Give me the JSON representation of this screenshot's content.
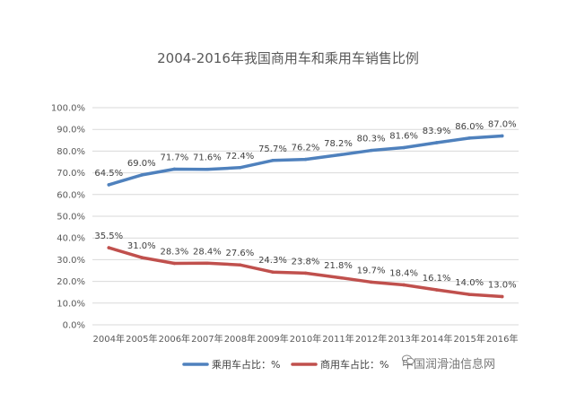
{
  "chart_data": {
    "type": "line",
    "title": "2004-2016年我国商用车和乘用车销售比例",
    "categories": [
      "2004年",
      "2005年",
      "2006年",
      "2007年",
      "2008年",
      "2009年",
      "2010年",
      "2011年",
      "2012年",
      "2013年",
      "2014年",
      "2015年",
      "2016年"
    ],
    "series": [
      {
        "name": "乘用车占比：%",
        "color": "#4f81bd",
        "values": [
          64.5,
          69.0,
          71.7,
          71.6,
          72.4,
          75.7,
          76.2,
          78.2,
          80.3,
          81.6,
          83.9,
          86.0,
          87.0
        ],
        "labels": [
          "64.5%",
          "69.0%",
          "71.7%",
          "71.6%",
          "72.4%",
          "75.7%",
          "76.2%",
          "78.2%",
          "80.3%",
          "81.6%",
          "83.9%",
          "86.0%",
          "87.0%"
        ]
      },
      {
        "name": "商用车占比：%",
        "color": "#c0504d",
        "values": [
          35.5,
          31.0,
          28.3,
          28.4,
          27.6,
          24.3,
          23.8,
          21.8,
          19.7,
          18.4,
          16.1,
          14.0,
          13.0
        ],
        "labels": [
          "35.5%",
          "31.0%",
          "28.3%",
          "28.4%",
          "27.6%",
          "24.3%",
          "23.8%",
          "21.8%",
          "19.7%",
          "18.4%",
          "16.1%",
          "14.0%",
          "13.0%"
        ]
      }
    ],
    "ylim": [
      0,
      100
    ],
    "yticks": [
      0,
      10,
      20,
      30,
      40,
      50,
      60,
      70,
      80,
      90,
      100
    ],
    "ytick_labels": [
      "0.0%",
      "10.0%",
      "20.0%",
      "30.0%",
      "40.0%",
      "50.0%",
      "60.0%",
      "70.0%",
      "80.0%",
      "90.0%",
      "100.0%"
    ],
    "grid": true,
    "legend_position": "bottom"
  },
  "watermark": {
    "text": "中国润滑油信息网",
    "icon": "wechat-icon"
  }
}
